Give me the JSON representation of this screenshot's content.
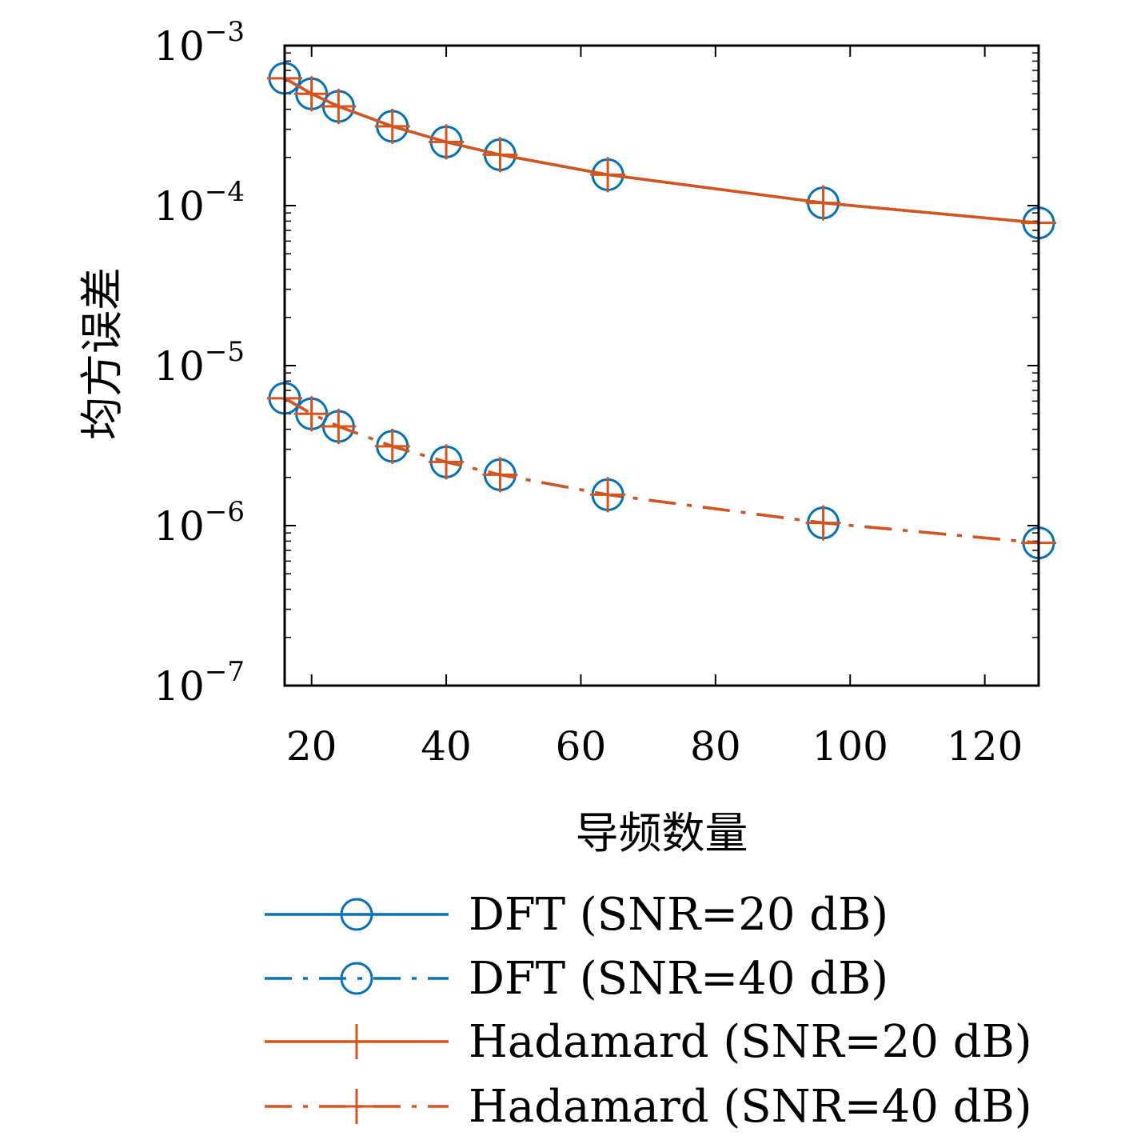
{
  "chart_data": {
    "type": "line",
    "xlabel": "导频数量",
    "ylabel": "均方误差",
    "x": [
      16,
      20,
      24,
      32,
      40,
      48,
      64,
      96,
      128
    ],
    "xlim": [
      16,
      128
    ],
    "xticks": [
      20,
      40,
      60,
      80,
      100,
      120
    ],
    "ylim": [
      1e-07,
      0.001
    ],
    "yscale": "log",
    "yticks": [
      {
        "base": "10",
        "exp": "−3",
        "value": 0.001
      },
      {
        "base": "10",
        "exp": "−4",
        "value": 0.0001
      },
      {
        "base": "10",
        "exp": "−5",
        "value": 1e-05
      },
      {
        "base": "10",
        "exp": "−6",
        "value": 1e-06
      },
      {
        "base": "10",
        "exp": "−7",
        "value": 1e-07
      }
    ],
    "grid": false,
    "legend_position": "bottom",
    "series": [
      {
        "name": "DFT (SNR=20 dB)",
        "color": "#0072BD",
        "line": "solid",
        "marker": "circle",
        "values": [
          0.000625,
          0.0005,
          0.000417,
          0.000313,
          0.00025,
          0.000208,
          0.000156,
          0.000104,
          7.8e-05
        ]
      },
      {
        "name": "DFT (SNR=40 dB)",
        "color": "#0072BD",
        "line": "dashdot",
        "marker": "circle",
        "values": [
          6.25e-06,
          5e-06,
          4.17e-06,
          3.13e-06,
          2.5e-06,
          2.08e-06,
          1.56e-06,
          1.04e-06,
          7.8e-07
        ]
      },
      {
        "name": "Hadamard (SNR=20 dB)",
        "color": "#D95319",
        "line": "solid",
        "marker": "plus",
        "values": [
          0.000625,
          0.0005,
          0.000417,
          0.000313,
          0.00025,
          0.000208,
          0.000156,
          0.000104,
          7.8e-05
        ]
      },
      {
        "name": "Hadamard (SNR=40 dB)",
        "color": "#D95319",
        "line": "dashdot",
        "marker": "plus",
        "values": [
          6.25e-06,
          5e-06,
          4.17e-06,
          3.13e-06,
          2.5e-06,
          2.08e-06,
          1.56e-06,
          1.04e-06,
          7.8e-07
        ]
      }
    ]
  }
}
